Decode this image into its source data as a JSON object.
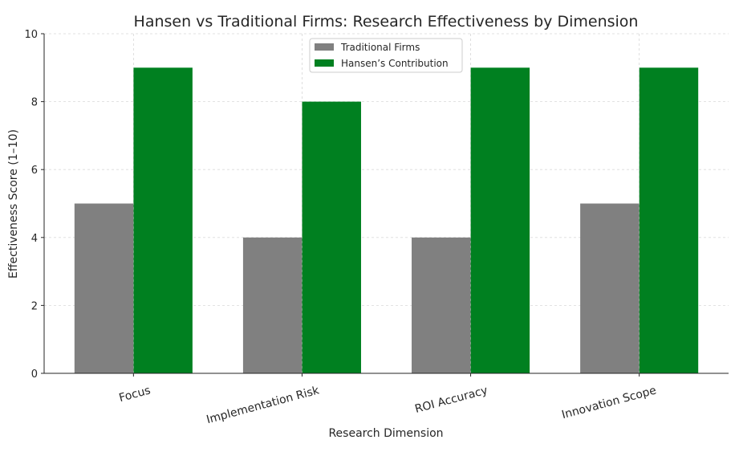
{
  "chart_data": {
    "type": "bar",
    "title": "Hansen vs Traditional Firms: Research Effectiveness by Dimension",
    "xlabel": "Research Dimension",
    "ylabel": "Effectiveness Score (1–10)",
    "categories": [
      "Focus",
      "Implementation Risk",
      "ROI Accuracy",
      "Innovation Scope"
    ],
    "series": [
      {
        "name": "Traditional Firms",
        "values": [
          5,
          4,
          4,
          5
        ],
        "color": "#808080"
      },
      {
        "name": "Hansen’s Contribution",
        "values": [
          9,
          8,
          9,
          9
        ],
        "color": "#008020"
      }
    ],
    "ylim": [
      0,
      10
    ],
    "yticks": [
      0,
      2,
      4,
      6,
      8,
      10
    ],
    "grid": true,
    "legend_position": "top-center"
  }
}
